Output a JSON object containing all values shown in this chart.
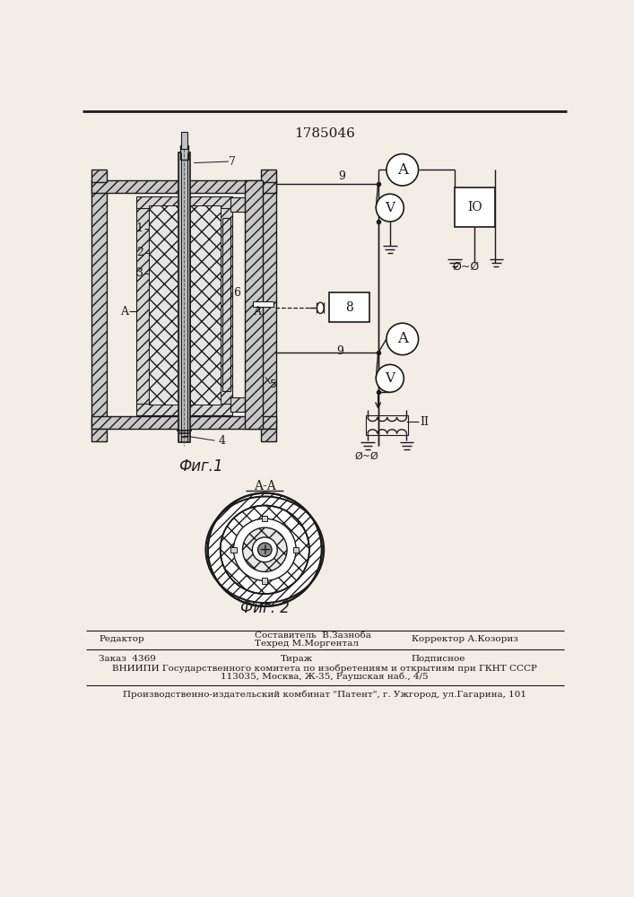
{
  "patent_number": "1785046",
  "fig1_caption": "Фиг.1",
  "fig2_caption": "Фиг. 2",
  "aa_label": "A-A",
  "footer_line1_left": "Редактор",
  "footer_line1_center1": "Составитель  В.Зазноба",
  "footer_line1_center2": "Техред М.Моргентал",
  "footer_line1_right": "Корректор А.Козориз",
  "footer_line2_col1": "Заказ  4369",
  "footer_line2_col2": "Тираж",
  "footer_line2_col3": "Подписное",
  "footer_line3": "ВНИИПИ Государственного комитета по изобретениям и открытиям при ГКНТ СССР",
  "footer_line4": "113035, Москва, Ж-35, Раушская наб., 4/5",
  "footer_line5": "Производственно-издательский комбинат \"Патент\", г. Ужгород, ул.Гагарина, 101",
  "bg_color": "#f2ede5",
  "line_color": "#1a1a1a"
}
